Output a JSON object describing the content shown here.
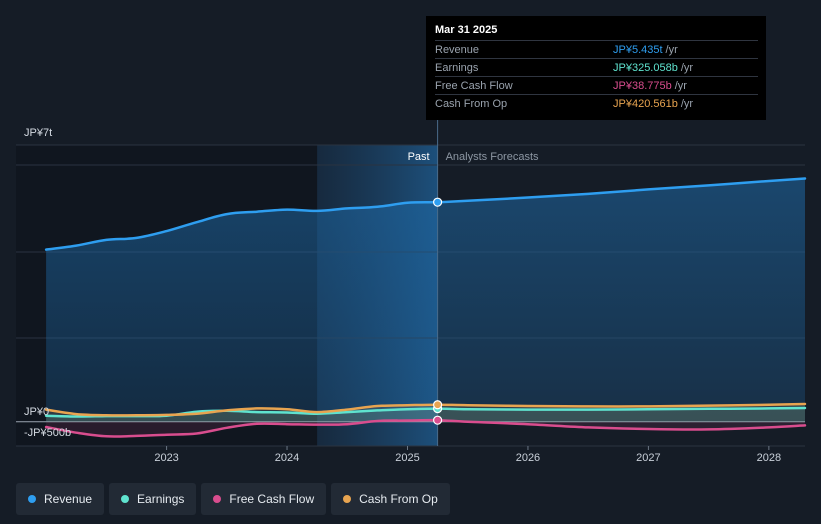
{
  "chart_data": {
    "type": "line",
    "y_axis": {
      "top_label": "JP¥7t",
      "zero_label": "JP¥0",
      "neg_label": "-JP¥500b",
      "ylim": [
        -0.6,
        6.85
      ],
      "unit": "JP¥ trillion"
    },
    "x_axis": {
      "ticks": [
        {
          "label": "2023",
          "value": 2023.0
        },
        {
          "label": "2024",
          "value": 2024.0
        },
        {
          "label": "2025",
          "value": 2025.0
        },
        {
          "label": "2026",
          "value": 2026.0
        },
        {
          "label": "2027",
          "value": 2027.0
        },
        {
          "label": "2028",
          "value": 2028.0
        }
      ],
      "xlim": [
        2021.75,
        2028.3
      ]
    },
    "divider": {
      "x": 2025.25,
      "past_label": "Past",
      "forecast_label": "Analysts Forecasts"
    },
    "series": [
      {
        "name": "Revenue",
        "color": "#2e9ef0",
        "fill": true,
        "points": [
          [
            2022.0,
            4.26
          ],
          [
            2022.25,
            4.36
          ],
          [
            2022.5,
            4.5
          ],
          [
            2022.75,
            4.55
          ],
          [
            2023.0,
            4.72
          ],
          [
            2023.25,
            4.94
          ],
          [
            2023.5,
            5.14
          ],
          [
            2023.75,
            5.2
          ],
          [
            2024.0,
            5.25
          ],
          [
            2024.25,
            5.22
          ],
          [
            2024.5,
            5.28
          ],
          [
            2024.75,
            5.32
          ],
          [
            2025.0,
            5.42
          ],
          [
            2025.25,
            5.435
          ],
          [
            2025.5,
            5.47
          ],
          [
            2026.0,
            5.55
          ],
          [
            2026.5,
            5.64
          ],
          [
            2027.0,
            5.75
          ],
          [
            2027.5,
            5.85
          ],
          [
            2028.0,
            5.96
          ],
          [
            2028.3,
            6.02
          ]
        ]
      },
      {
        "name": "Earnings",
        "color": "#5fe3cf",
        "fill": false,
        "points": [
          [
            2022.0,
            0.15
          ],
          [
            2022.25,
            0.13
          ],
          [
            2022.5,
            0.14
          ],
          [
            2022.75,
            0.14
          ],
          [
            2023.0,
            0.15
          ],
          [
            2023.25,
            0.25
          ],
          [
            2023.5,
            0.27
          ],
          [
            2023.75,
            0.24
          ],
          [
            2024.0,
            0.23
          ],
          [
            2024.25,
            0.2
          ],
          [
            2024.5,
            0.24
          ],
          [
            2024.75,
            0.28
          ],
          [
            2025.0,
            0.31
          ],
          [
            2025.25,
            0.325
          ],
          [
            2025.5,
            0.31
          ],
          [
            2026.0,
            0.3
          ],
          [
            2026.5,
            0.3
          ],
          [
            2027.0,
            0.31
          ],
          [
            2027.5,
            0.32
          ],
          [
            2028.0,
            0.33
          ],
          [
            2028.3,
            0.34
          ]
        ]
      },
      {
        "name": "Free Cash Flow",
        "color": "#d94d8e",
        "fill": false,
        "points": [
          [
            2022.0,
            -0.13
          ],
          [
            2022.25,
            -0.27
          ],
          [
            2022.5,
            -0.36
          ],
          [
            2022.75,
            -0.35
          ],
          [
            2023.0,
            -0.32
          ],
          [
            2023.25,
            -0.29
          ],
          [
            2023.5,
            -0.15
          ],
          [
            2023.75,
            -0.05
          ],
          [
            2024.0,
            -0.06
          ],
          [
            2024.25,
            -0.07
          ],
          [
            2024.5,
            -0.06
          ],
          [
            2024.75,
            0.02
          ],
          [
            2025.0,
            0.03
          ],
          [
            2025.25,
            0.039
          ],
          [
            2025.5,
            0.0
          ],
          [
            2026.0,
            -0.06
          ],
          [
            2026.5,
            -0.14
          ],
          [
            2027.0,
            -0.18
          ],
          [
            2027.5,
            -0.19
          ],
          [
            2028.0,
            -0.14
          ],
          [
            2028.3,
            -0.09
          ]
        ]
      },
      {
        "name": "Cash From Op",
        "color": "#e8a450",
        "fill": false,
        "points": [
          [
            2022.0,
            0.3
          ],
          [
            2022.25,
            0.19
          ],
          [
            2022.5,
            0.16
          ],
          [
            2022.75,
            0.16
          ],
          [
            2023.0,
            0.17
          ],
          [
            2023.25,
            0.2
          ],
          [
            2023.5,
            0.28
          ],
          [
            2023.75,
            0.33
          ],
          [
            2024.0,
            0.31
          ],
          [
            2024.25,
            0.24
          ],
          [
            2024.5,
            0.3
          ],
          [
            2024.75,
            0.39
          ],
          [
            2025.0,
            0.41
          ],
          [
            2025.25,
            0.421
          ],
          [
            2025.5,
            0.41
          ],
          [
            2026.0,
            0.39
          ],
          [
            2026.5,
            0.38
          ],
          [
            2027.0,
            0.38
          ],
          [
            2027.5,
            0.4
          ],
          [
            2028.0,
            0.42
          ],
          [
            2028.3,
            0.44
          ]
        ]
      }
    ]
  },
  "tooltip": {
    "date": "Mar 31 2025",
    "rows": [
      {
        "label": "Revenue",
        "value": "JP¥5.435t",
        "unit": "/yr",
        "color": "#2e9ef0"
      },
      {
        "label": "Earnings",
        "value": "JP¥325.058b",
        "unit": "/yr",
        "color": "#5fe3cf"
      },
      {
        "label": "Free Cash Flow",
        "value": "JP¥38.775b",
        "unit": "/yr",
        "color": "#d94d8e"
      },
      {
        "label": "Cash From Op",
        "value": "JP¥420.561b",
        "unit": "/yr",
        "color": "#e8a450"
      }
    ]
  },
  "legend": [
    {
      "label": "Revenue",
      "color": "#2e9ef0"
    },
    {
      "label": "Earnings",
      "color": "#5fe3cf"
    },
    {
      "label": "Free Cash Flow",
      "color": "#d94d8e"
    },
    {
      "label": "Cash From Op",
      "color": "#e8a450"
    }
  ]
}
